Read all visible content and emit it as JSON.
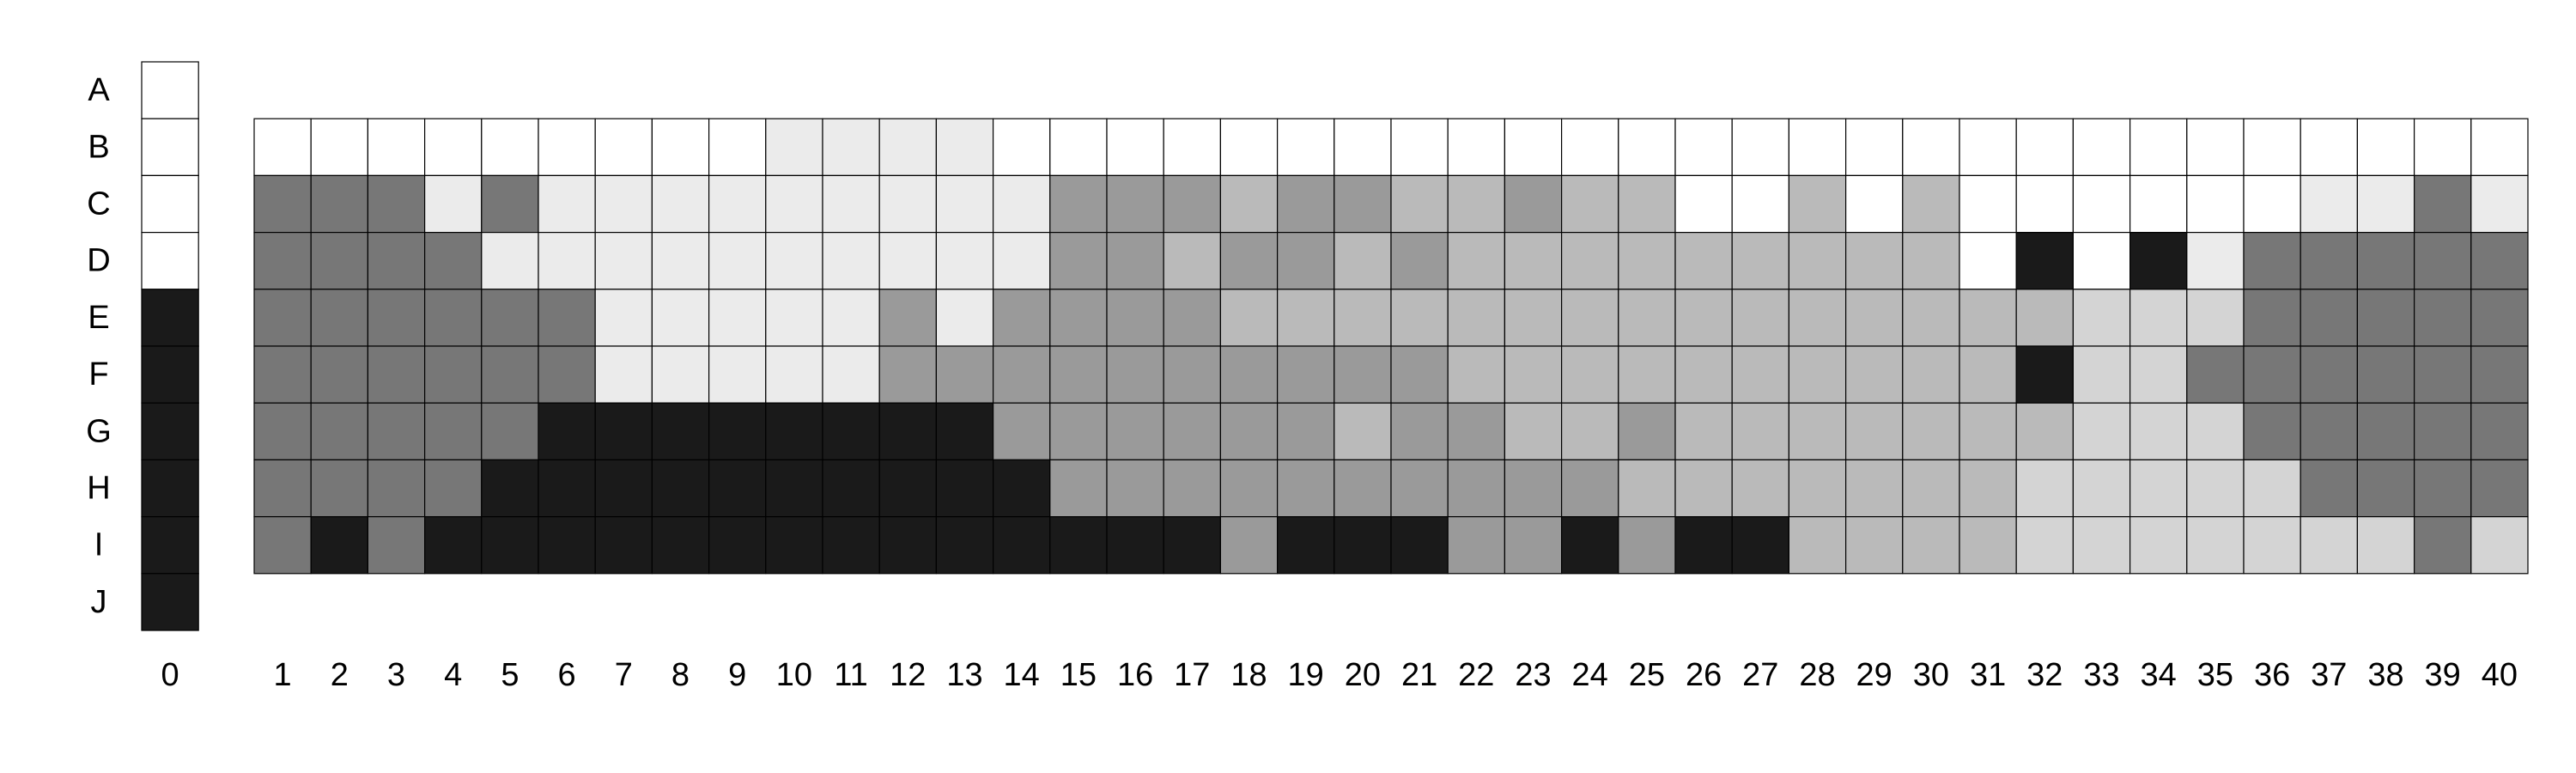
{
  "chart_data": {
    "type": "heatmap",
    "title": "",
    "row_labels": [
      "A",
      "B",
      "C",
      "D",
      "E",
      "F",
      "G",
      "H",
      "I",
      "J"
    ],
    "col_labels": [
      "0",
      "1",
      "2",
      "3",
      "4",
      "5",
      "6",
      "7",
      "8",
      "9",
      "10",
      "11",
      "12",
      "13",
      "14",
      "15",
      "16",
      "17",
      "18",
      "19",
      "20",
      "21",
      "22",
      "23",
      "24",
      "25",
      "26",
      "27",
      "28",
      "29",
      "30",
      "31",
      "32",
      "33",
      "34",
      "35",
      "36",
      "37",
      "38",
      "39",
      "40"
    ],
    "value_scale": {
      "0": "white",
      "1": "very light gray",
      "2": "light gray",
      "3": "medium-light gray",
      "4": "medium gray",
      "5": "dark gray",
      "6": "near black"
    },
    "palette": [
      "#ffffff",
      "#ebebeb",
      "#d4d4d4",
      "#bababa",
      "#9a9a9a",
      "#777777",
      "#1a1a1a"
    ],
    "column_0": [
      0,
      0,
      0,
      0,
      6,
      6,
      6,
      6,
      6,
      6
    ],
    "grid_rows": [
      "B",
      "C",
      "D",
      "E",
      "F",
      "G",
      "H",
      "I"
    ],
    "values": [
      [
        0,
        0,
        0,
        0,
        0,
        0,
        0,
        0,
        0,
        1,
        1,
        1,
        1,
        0,
        0,
        0,
        0,
        0,
        0,
        0,
        0,
        0,
        0,
        0,
        0,
        0,
        0,
        0,
        0,
        0,
        0,
        0,
        0,
        0,
        0,
        0,
        0,
        0,
        0,
        0
      ],
      [
        5,
        5,
        5,
        1,
        5,
        1,
        1,
        1,
        1,
        1,
        1,
        1,
        1,
        1,
        4,
        4,
        4,
        3,
        4,
        4,
        3,
        3,
        4,
        3,
        3,
        0,
        0,
        3,
        0,
        3,
        0,
        0,
        0,
        0,
        0,
        0,
        1,
        1,
        5,
        1
      ],
      [
        5,
        5,
        5,
        5,
        1,
        1,
        1,
        1,
        1,
        1,
        1,
        1,
        1,
        1,
        4,
        4,
        3,
        4,
        4,
        3,
        4,
        3,
        3,
        3,
        3,
        3,
        3,
        3,
        3,
        3,
        0,
        6,
        0,
        6,
        1,
        5,
        5,
        5,
        5,
        5
      ],
      [
        5,
        5,
        5,
        5,
        5,
        5,
        1,
        1,
        1,
        1,
        1,
        4,
        1,
        4,
        4,
        4,
        4,
        3,
        3,
        3,
        3,
        3,
        3,
        3,
        3,
        3,
        3,
        3,
        3,
        3,
        3,
        3,
        2,
        2,
        2,
        5,
        5,
        5,
        5,
        5
      ],
      [
        5,
        5,
        5,
        5,
        5,
        5,
        1,
        1,
        1,
        1,
        1,
        4,
        4,
        4,
        4,
        4,
        4,
        4,
        4,
        4,
        4,
        3,
        3,
        3,
        3,
        3,
        3,
        3,
        3,
        3,
        3,
        6,
        2,
        2,
        5,
        5,
        5,
        5,
        5,
        5
      ],
      [
        5,
        5,
        5,
        5,
        5,
        6,
        6,
        6,
        6,
        6,
        6,
        6,
        6,
        4,
        4,
        4,
        4,
        4,
        4,
        3,
        4,
        4,
        3,
        3,
        4,
        3,
        3,
        3,
        3,
        3,
        3,
        3,
        2,
        2,
        2,
        5,
        5,
        5,
        5,
        5
      ],
      [
        5,
        5,
        5,
        5,
        6,
        6,
        6,
        6,
        6,
        6,
        6,
        6,
        6,
        6,
        4,
        4,
        4,
        4,
        4,
        4,
        4,
        4,
        4,
        4,
        3,
        3,
        3,
        3,
        3,
        3,
        3,
        2,
        2,
        2,
        2,
        2,
        5,
        5,
        5,
        5
      ],
      [
        5,
        6,
        5,
        6,
        6,
        6,
        6,
        6,
        6,
        6,
        6,
        6,
        6,
        6,
        6,
        6,
        6,
        4,
        6,
        6,
        6,
        4,
        4,
        6,
        4,
        6,
        6,
        3,
        3,
        3,
        3,
        2,
        2,
        2,
        2,
        2,
        2,
        2,
        5,
        2
      ]
    ]
  }
}
